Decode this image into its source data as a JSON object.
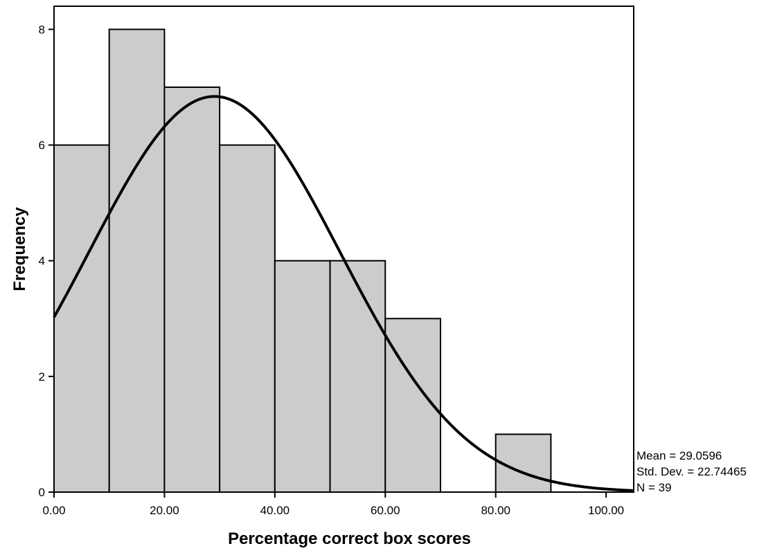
{
  "chart_data": {
    "type": "bar",
    "subtype": "histogram",
    "xlabel": "Percentage correct box scores",
    "ylabel": "Frequency",
    "bins": [
      {
        "start": 0,
        "end": 10,
        "count": 6
      },
      {
        "start": 10,
        "end": 20,
        "count": 8
      },
      {
        "start": 20,
        "end": 30,
        "count": 7
      },
      {
        "start": 30,
        "end": 40,
        "count": 6
      },
      {
        "start": 40,
        "end": 50,
        "count": 4
      },
      {
        "start": 50,
        "end": 60,
        "count": 4
      },
      {
        "start": 60,
        "end": 70,
        "count": 3
      },
      {
        "start": 70,
        "end": 80,
        "count": 0
      },
      {
        "start": 80,
        "end": 90,
        "count": 1
      }
    ],
    "x_ticks": [
      "0.00",
      "20.00",
      "40.00",
      "60.00",
      "80.00",
      "100.00"
    ],
    "y_ticks": [
      "0",
      "2",
      "4",
      "6",
      "8"
    ],
    "xlim": [
      0,
      105
    ],
    "ylim": [
      0,
      8.4
    ],
    "normal_curve": {
      "mean": 29.0596,
      "sd": 22.74465,
      "n": 39,
      "bin_width": 10
    },
    "bar_color": "#cccccc",
    "stats": {
      "mean": "Mean = 29.0596",
      "sd": "Std. Dev. = 22.74465",
      "n": "N = 39"
    }
  }
}
